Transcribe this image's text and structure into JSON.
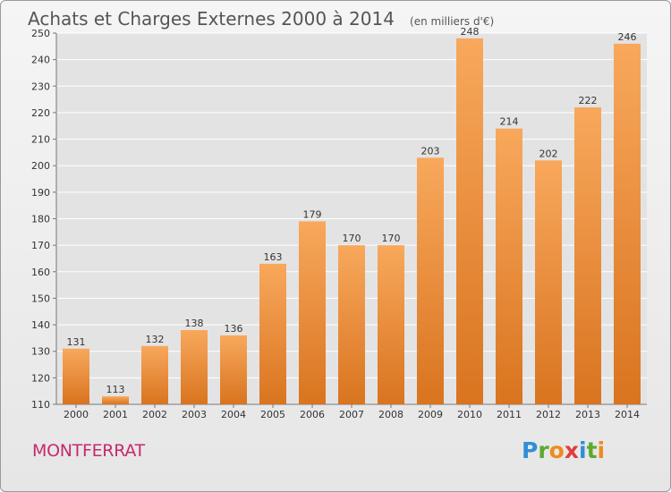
{
  "title": "Achats et Charges Externes 2000 à 2014",
  "unit": "(en milliers d'€)",
  "commune": "MONTFERRAT",
  "logo": {
    "letters": [
      "P",
      "r",
      "o",
      "x",
      "i",
      "t",
      "i"
    ],
    "colors": [
      "#2f8fd6",
      "#5aaa2f",
      "#f08a1c",
      "#e23b3b",
      "#2f8fd6",
      "#5aaa2f",
      "#f08a1c"
    ]
  },
  "colors": {
    "bar_light": "#f8a85c",
    "bar_dark": "#d9741f",
    "grid": "#ffffff"
  },
  "chart_data": {
    "type": "bar",
    "categories": [
      "2000",
      "2001",
      "2002",
      "2003",
      "2004",
      "2005",
      "2006",
      "2007",
      "2008",
      "2009",
      "2010",
      "2011",
      "2012",
      "2013",
      "2014"
    ],
    "values": [
      131,
      113,
      132,
      138,
      136,
      163,
      179,
      170,
      170,
      203,
      248,
      214,
      202,
      222,
      246
    ],
    "ylim": [
      110,
      250
    ],
    "yticks": [
      110,
      120,
      130,
      140,
      150,
      160,
      170,
      180,
      190,
      200,
      210,
      220,
      230,
      240,
      250
    ],
    "grid": true
  }
}
